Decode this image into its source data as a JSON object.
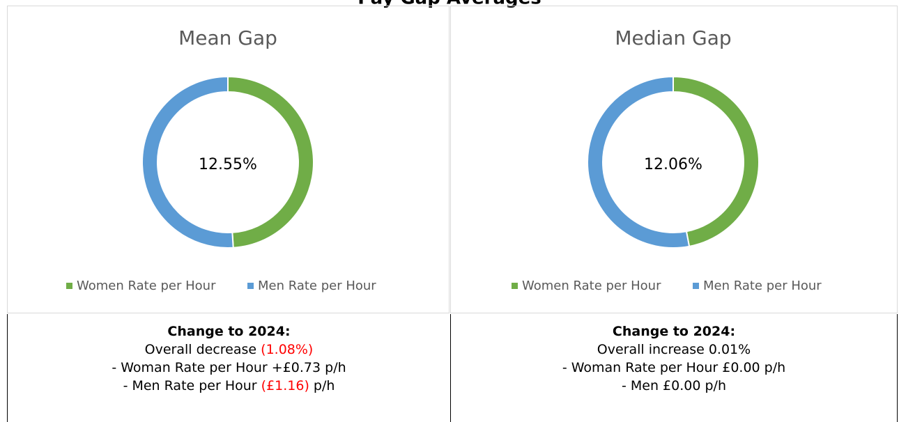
{
  "title": "Pay Gap Averages",
  "chart_data": [
    {
      "type": "donut",
      "title": "Mean Gap",
      "center_label": "12.55%",
      "categories": [
        "Women Rate per Hour",
        "Men Rate per Hour"
      ],
      "values": [
        49,
        51
      ],
      "colors": [
        "#70ad47",
        "#5b9bd5"
      ]
    },
    {
      "type": "donut",
      "title": "Median Gap",
      "center_label": "12.06%",
      "categories": [
        "Women Rate per Hour",
        "Men Rate per Hour"
      ],
      "values": [
        47,
        53
      ],
      "colors": [
        "#70ad47",
        "#5b9bd5"
      ]
    }
  ],
  "notes": [
    {
      "heading": "Change to 2024:",
      "lines": [
        [
          {
            "text": "Overall decrease "
          },
          {
            "text": "(1.08%)",
            "color": "#ff0000"
          }
        ],
        [
          {
            "text": "- Woman Rate per Hour +£0.73 p/h"
          }
        ],
        [
          {
            "text": "- Men Rate per Hour "
          },
          {
            "text": "(£1.16)",
            "color": "#ff0000"
          },
          {
            "text": " p/h"
          }
        ]
      ]
    },
    {
      "heading": "Change to 2024:",
      "lines": [
        [
          {
            "text": "Overall increase 0.01%"
          }
        ],
        [
          {
            "text": "- Woman Rate per Hour £0.00 p/h"
          }
        ],
        [
          {
            "text": "- Men £0.00 p/h"
          }
        ]
      ]
    }
  ]
}
